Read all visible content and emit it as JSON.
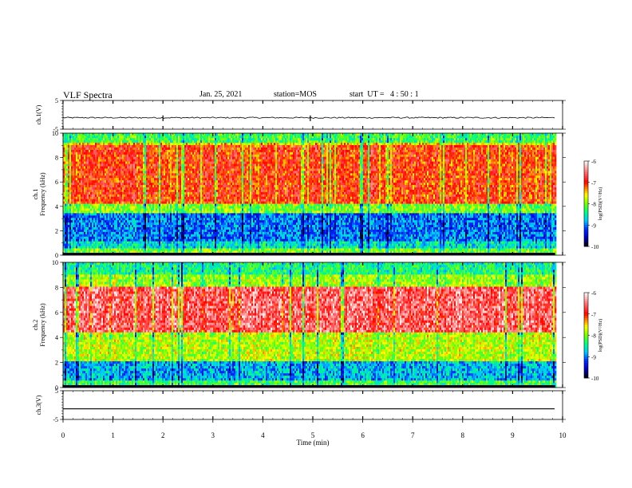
{
  "header": {
    "title": "VLF Spectra",
    "date": "Jan. 25, 2021",
    "station": "station=MOS",
    "start": "start  UT =   4 : 50 : 1"
  },
  "chart_data": [
    {
      "type": "line",
      "panel": "ch1-waveform",
      "ylabel": "ch.1(V)",
      "ylim": [
        -5,
        5
      ],
      "yticks": [
        "5",
        "-5"
      ],
      "xlim": [
        0,
        10
      ],
      "value_level": -1
    },
    {
      "type": "heatmap",
      "panel": "ch1-spectrogram",
      "ylabel": "ch.1\nFrequency (kHz)",
      "ylim": [
        0,
        10
      ],
      "yticks": [
        "0",
        "2",
        "4",
        "6",
        "8",
        "10"
      ],
      "xlim": [
        0,
        10
      ],
      "data_end_min": 9.85,
      "bands_khz": [
        {
          "from": 0,
          "to": 0.5,
          "log_psd": -8.0
        },
        {
          "from": 0.5,
          "to": 1.2,
          "log_psd": -8.6
        },
        {
          "from": 1.2,
          "to": 3.5,
          "log_psd": -9.0
        },
        {
          "from": 3.5,
          "to": 4.2,
          "log_psd": -8.0
        },
        {
          "from": 4.2,
          "to": 9.0,
          "log_psd": -7.0
        },
        {
          "from": 9.0,
          "to": 9.3,
          "log_psd": -7.5
        },
        {
          "from": 9.3,
          "to": 10,
          "log_psd": -8.2
        }
      ],
      "colorbar": {
        "label": "log(PSD)(V²/Hz)",
        "range": [
          -10,
          -6
        ],
        "ticks": [
          "-6",
          "-7",
          "-8",
          "-9",
          "-10"
        ]
      }
    },
    {
      "type": "heatmap",
      "panel": "ch2-spectrogram",
      "ylabel": "ch.2\nFrequency (kHz)",
      "ylim": [
        0,
        10
      ],
      "yticks": [
        "0",
        "2",
        "4",
        "6",
        "8",
        "10"
      ],
      "xlim": [
        0,
        10
      ],
      "data_end_min": 9.85,
      "bands_khz": [
        {
          "from": 0,
          "to": 0.5,
          "log_psd": -8.2
        },
        {
          "from": 0.5,
          "to": 2.2,
          "log_psd": -8.8
        },
        {
          "from": 2.2,
          "to": 4.5,
          "log_psd": -7.8
        },
        {
          "from": 4.5,
          "to": 8.0,
          "log_psd": -6.6
        },
        {
          "from": 8.0,
          "to": 9.0,
          "log_psd": -7.9
        },
        {
          "from": 9.0,
          "to": 10,
          "log_psd": -8.4
        }
      ],
      "colorbar": {
        "label": "log(PSD)(V²/Hz)",
        "range": [
          -10,
          -6
        ],
        "ticks": [
          "-6",
          "-7",
          "-8",
          "-9",
          "-10"
        ]
      }
    },
    {
      "type": "line",
      "panel": "ch3-waveform",
      "ylabel": "ch.3(V)",
      "ylim": [
        -5,
        5
      ],
      "yticks": [
        "5",
        "-5"
      ],
      "xlim": [
        0,
        10
      ],
      "value_level": -1.3
    }
  ],
  "xaxis": {
    "label": "Time (min)",
    "ticks": [
      "0",
      "1",
      "2",
      "3",
      "4",
      "5",
      "6",
      "7",
      "8",
      "9",
      "10"
    ]
  },
  "colors": {
    "scale": [
      "#000000",
      "#0000ff",
      "#00c8ff",
      "#00ff80",
      "#aaff00",
      "#ffff00",
      "#ff8800",
      "#ff0000",
      "#ffffff"
    ]
  }
}
